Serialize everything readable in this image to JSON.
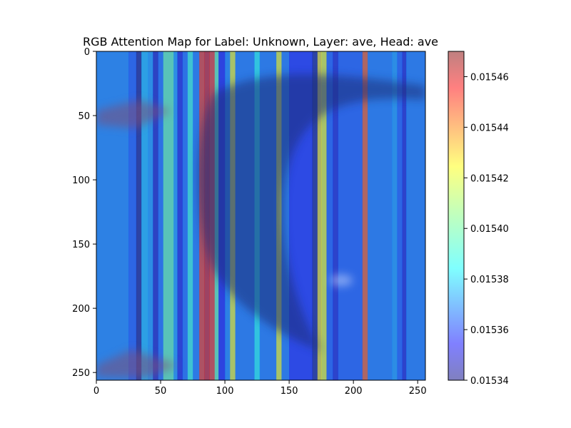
{
  "chart_data": {
    "type": "heatmap",
    "title": "RGB Attention Map for Label: Unknown, Layer: ave, Head: ave",
    "xlabel": "",
    "ylabel": "",
    "xlim": [
      0,
      256
    ],
    "ylim": [
      256,
      0
    ],
    "x_ticks": [
      0,
      50,
      100,
      150,
      200,
      250
    ],
    "y_ticks": [
      0,
      50,
      100,
      150,
      200,
      250
    ],
    "x_tick_labels": [
      "0",
      "50",
      "100",
      "150",
      "200",
      "250"
    ],
    "y_tick_labels": [
      "0",
      "50",
      "100",
      "150",
      "200",
      "250"
    ],
    "grid": false,
    "colorbar": {
      "min": 0.01534,
      "max": 0.01547,
      "ticks": [
        0.01534,
        0.01536,
        0.01538,
        0.0154,
        0.01542,
        0.01544,
        0.01546
      ],
      "tick_labels": [
        "0.01534",
        "0.01536",
        "0.01538",
        "0.01540",
        "0.01542",
        "0.01544",
        "0.01546"
      ],
      "colormap": "jet",
      "alpha": 0.5
    },
    "column_values": [
      {
        "x0": 0,
        "x1": 25,
        "value": 0.015372
      },
      {
        "x0": 25,
        "x1": 31,
        "value": 0.015365
      },
      {
        "x0": 31,
        "x1": 35,
        "value": 0.01534
      },
      {
        "x0": 35,
        "x1": 40,
        "value": 0.01538
      },
      {
        "x0": 40,
        "x1": 44,
        "value": 0.015375
      },
      {
        "x0": 44,
        "x1": 48,
        "value": 0.015348
      },
      {
        "x0": 48,
        "x1": 52,
        "value": 0.015368
      },
      {
        "x0": 52,
        "x1": 60,
        "value": 0.0154
      },
      {
        "x0": 60,
        "x1": 63,
        "value": 0.015375
      },
      {
        "x0": 63,
        "x1": 67,
        "value": 0.015352
      },
      {
        "x0": 67,
        "x1": 71,
        "value": 0.015368
      },
      {
        "x0": 71,
        "x1": 75,
        "value": 0.015393
      },
      {
        "x0": 75,
        "x1": 80,
        "value": 0.01537
      },
      {
        "x0": 80,
        "x1": 84,
        "value": 0.01545
      },
      {
        "x0": 84,
        "x1": 88,
        "value": 0.015458
      },
      {
        "x0": 88,
        "x1": 92,
        "value": 0.01545
      },
      {
        "x0": 92,
        "x1": 95,
        "value": 0.0154
      },
      {
        "x0": 95,
        "x1": 100,
        "value": 0.015355
      },
      {
        "x0": 100,
        "x1": 104,
        "value": 0.015372
      },
      {
        "x0": 104,
        "x1": 108,
        "value": 0.01542
      },
      {
        "x0": 108,
        "x1": 123,
        "value": 0.01537
      },
      {
        "x0": 123,
        "x1": 127,
        "value": 0.01539
      },
      {
        "x0": 127,
        "x1": 140,
        "value": 0.01537
      },
      {
        "x0": 140,
        "x1": 144,
        "value": 0.01542
      },
      {
        "x0": 144,
        "x1": 150,
        "value": 0.01537
      },
      {
        "x0": 150,
        "x1": 168,
        "value": 0.015358
      },
      {
        "x0": 168,
        "x1": 172,
        "value": 0.01534
      },
      {
        "x0": 172,
        "x1": 175,
        "value": 0.015425
      },
      {
        "x0": 175,
        "x1": 179,
        "value": 0.01542
      },
      {
        "x0": 179,
        "x1": 184,
        "value": 0.015365
      },
      {
        "x0": 184,
        "x1": 188,
        "value": 0.01535
      },
      {
        "x0": 188,
        "x1": 207,
        "value": 0.015365
      },
      {
        "x0": 207,
        "x1": 211,
        "value": 0.015445
      },
      {
        "x0": 211,
        "x1": 230,
        "value": 0.01537
      },
      {
        "x0": 230,
        "x1": 234,
        "value": 0.015375
      },
      {
        "x0": 234,
        "x1": 238,
        "value": 0.015365
      },
      {
        "x0": 238,
        "x1": 241,
        "value": 0.01535
      },
      {
        "x0": 241,
        "x1": 256,
        "value": 0.01537
      }
    ]
  }
}
